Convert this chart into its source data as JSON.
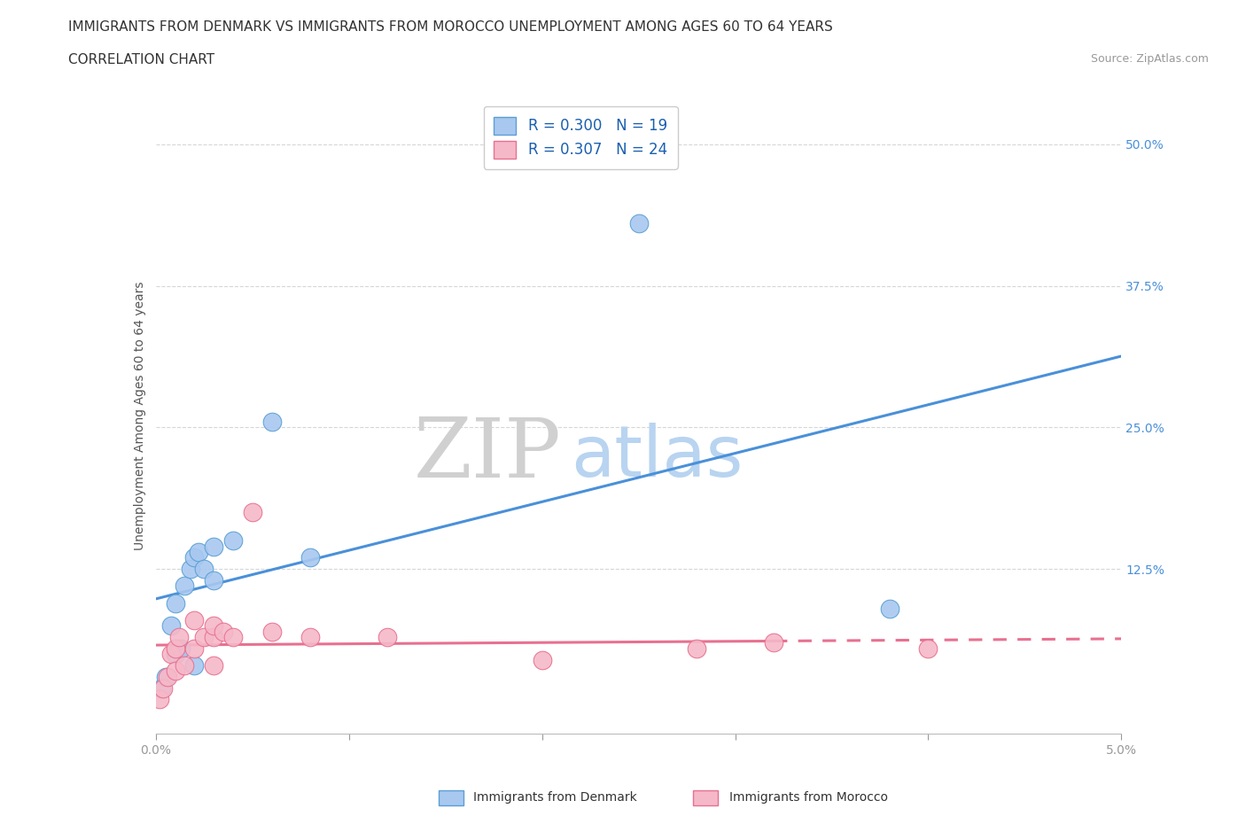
{
  "title_line1": "IMMIGRANTS FROM DENMARK VS IMMIGRANTS FROM MOROCCO UNEMPLOYMENT AMONG AGES 60 TO 64 YEARS",
  "title_line2": "CORRELATION CHART",
  "source_text": "Source: ZipAtlas.com",
  "ylabel": "Unemployment Among Ages 60 to 64 years",
  "xlim": [
    0.0,
    0.05
  ],
  "ylim": [
    -0.02,
    0.54
  ],
  "xticks": [
    0.0,
    0.01,
    0.02,
    0.03,
    0.04,
    0.05
  ],
  "xticklabels": [
    "0.0%",
    "",
    "",
    "",
    "",
    "5.0%"
  ],
  "yticks": [
    0.125,
    0.25,
    0.375,
    0.5
  ],
  "yticklabels": [
    "12.5%",
    "25.0%",
    "37.5%",
    "50.0%"
  ],
  "denmark_color": "#a8c8f0",
  "morocco_color": "#f5b8c8",
  "denmark_edge_color": "#5a9fd4",
  "morocco_edge_color": "#e87090",
  "denmark_line_color": "#4a90d9",
  "morocco_line_color": "#e87090",
  "denmark_R": 0.3,
  "denmark_N": 19,
  "morocco_R": 0.307,
  "morocco_N": 24,
  "watermark_zip": "ZIP",
  "watermark_atlas": "atlas",
  "watermark_zip_color": "#d0d0d0",
  "watermark_atlas_color": "#b8d4f0",
  "background_color": "#ffffff",
  "grid_color": "#cccccc",
  "denmark_x": [
    0.0003,
    0.0005,
    0.0008,
    0.001,
    0.001,
    0.0013,
    0.0015,
    0.0018,
    0.002,
    0.002,
    0.0022,
    0.0025,
    0.003,
    0.003,
    0.004,
    0.006,
    0.008,
    0.025,
    0.038
  ],
  "denmark_y": [
    0.02,
    0.03,
    0.075,
    0.05,
    0.095,
    0.055,
    0.11,
    0.125,
    0.04,
    0.135,
    0.14,
    0.125,
    0.115,
    0.145,
    0.15,
    0.255,
    0.135,
    0.43,
    0.09
  ],
  "morocco_x": [
    0.0002,
    0.0004,
    0.0006,
    0.0008,
    0.001,
    0.001,
    0.0012,
    0.0015,
    0.002,
    0.002,
    0.0025,
    0.003,
    0.003,
    0.003,
    0.0035,
    0.004,
    0.005,
    0.006,
    0.008,
    0.012,
    0.02,
    0.028,
    0.032,
    0.04
  ],
  "morocco_y": [
    0.01,
    0.02,
    0.03,
    0.05,
    0.035,
    0.055,
    0.065,
    0.04,
    0.055,
    0.08,
    0.065,
    0.04,
    0.065,
    0.075,
    0.07,
    0.065,
    0.175,
    0.07,
    0.065,
    0.065,
    0.045,
    0.055,
    0.06,
    0.055
  ],
  "title_fontsize": 11,
  "subtitle_fontsize": 11,
  "source_fontsize": 9,
  "axis_label_fontsize": 10,
  "tick_fontsize": 10,
  "legend_fontsize": 12
}
